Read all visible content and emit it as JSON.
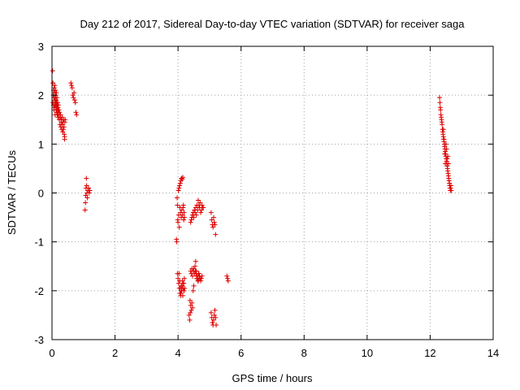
{
  "chart_data": {
    "type": "scatter",
    "title": "Day 212 of 2017, Sidereal Day-to-day VTEC variation (SDTVAR) for receiver saga",
    "xlabel": "GPS time / hours",
    "ylabel": "SDTVAR / TECUs",
    "xlim": [
      0,
      14
    ],
    "ylim": [
      -3,
      3
    ],
    "xticks": [
      0,
      2,
      4,
      6,
      8,
      10,
      12,
      14
    ],
    "yticks": [
      -3,
      -2,
      -1,
      0,
      1,
      2,
      3
    ],
    "xtick_labels": [
      "0",
      "2",
      "4",
      "6",
      "8",
      "10",
      "12",
      "14"
    ],
    "ytick_labels": [
      "-3",
      "-2",
      "-1",
      "0",
      "1",
      "2",
      "3"
    ],
    "grid": true,
    "marker": "+",
    "marker_color": "#dd0000",
    "series": [
      {
        "name": "SDTVAR",
        "x": [
          0.02,
          0.03,
          0.03,
          0.04,
          0.05,
          0.05,
          0.06,
          0.06,
          0.07,
          0.07,
          0.08,
          0.08,
          0.09,
          0.09,
          0.1,
          0.1,
          0.11,
          0.11,
          0.12,
          0.12,
          0.13,
          0.13,
          0.14,
          0.14,
          0.15,
          0.15,
          0.16,
          0.16,
          0.17,
          0.17,
          0.18,
          0.18,
          0.19,
          0.19,
          0.2,
          0.2,
          0.21,
          0.22,
          0.23,
          0.24,
          0.25,
          0.26,
          0.27,
          0.28,
          0.29,
          0.3,
          0.31,
          0.32,
          0.33,
          0.34,
          0.35,
          0.36,
          0.37,
          0.38,
          0.39,
          0.4,
          0.4,
          0.41,
          0.42,
          0.6,
          0.62,
          0.64,
          0.66,
          0.68,
          0.7,
          0.72,
          0.74,
          0.76,
          0.78,
          1.05,
          1.06,
          1.07,
          1.08,
          1.09,
          1.1,
          1.11,
          1.12,
          1.14,
          1.16,
          1.18,
          1.2,
          3.95,
          3.96,
          3.97,
          3.98,
          3.99,
          4.0,
          4.01,
          4.02,
          4.03,
          4.04,
          4.05,
          4.06,
          4.07,
          4.08,
          4.09,
          4.1,
          4.11,
          4.12,
          4.13,
          4.14,
          4.15,
          4.16,
          4.17,
          4.18,
          4.19,
          4.2,
          4.03,
          4.05,
          4.07,
          4.09,
          4.11,
          4.13,
          4.15,
          4.17,
          4.19,
          4.21,
          3.98,
          4.0,
          4.02,
          4.04,
          4.06,
          4.08,
          4.1,
          4.12,
          4.14,
          4.16,
          4.18,
          4.2,
          4.4,
          4.42,
          4.44,
          4.46,
          4.48,
          4.5,
          4.52,
          4.54,
          4.56,
          4.58,
          4.6,
          4.62,
          4.64,
          4.66,
          4.68,
          4.7,
          4.72,
          4.74,
          4.76,
          4.78,
          4.8,
          4.4,
          4.42,
          4.44,
          4.46,
          4.48,
          4.5,
          4.52,
          4.54,
          4.56,
          4.58,
          4.6,
          4.62,
          4.64,
          4.66,
          4.68,
          4.7,
          4.72,
          4.74,
          4.76,
          4.38,
          4.4,
          4.42,
          4.44,
          4.46,
          4.48,
          4.5,
          4.35,
          4.37,
          4.39,
          4.55,
          4.57,
          4.59,
          4.61,
          4.63,
          4.65,
          4.67,
          5.05,
          5.07,
          5.09,
          5.11,
          5.13,
          5.15,
          5.17,
          5.19,
          5.05,
          5.07,
          5.09,
          5.11,
          5.13,
          5.15,
          5.17,
          5.19,
          5.21,
          5.55,
          5.57,
          5.59,
          12.3,
          12.31,
          12.32,
          12.33,
          12.34,
          12.35,
          12.36,
          12.37,
          12.38,
          12.39,
          12.4,
          12.41,
          12.42,
          12.43,
          12.44,
          12.45,
          12.46,
          12.47,
          12.48,
          12.49,
          12.5,
          12.51,
          12.52,
          12.53,
          12.54,
          12.55,
          12.56,
          12.57,
          12.58,
          12.59,
          12.6,
          12.61,
          12.62,
          12.63,
          12.64,
          12.65,
          12.66,
          12.67,
          12.42,
          12.44,
          12.46,
          12.48,
          12.5,
          12.52,
          12.54,
          12.56,
          12.58
        ],
        "y": [
          2.5,
          2.25,
          1.85,
          2.0,
          1.8,
          2.1,
          1.95,
          1.7,
          2.15,
          1.75,
          2.05,
          1.9,
          2.2,
          1.8,
          1.95,
          1.6,
          2.1,
          1.85,
          1.75,
          2.0,
          1.9,
          1.7,
          2.05,
          1.8,
          1.85,
          1.65,
          1.95,
          1.75,
          1.8,
          1.6,
          1.7,
          1.85,
          1.55,
          1.75,
          1.65,
          1.8,
          1.6,
          1.7,
          1.5,
          1.65,
          1.4,
          1.55,
          1.6,
          1.35,
          1.5,
          1.45,
          1.3,
          1.55,
          1.4,
          1.25,
          1.45,
          1.3,
          1.5,
          1.35,
          1.2,
          1.1,
          1.15,
          1.45,
          1.5,
          2.25,
          2.2,
          2.15,
          2.0,
          1.95,
          2.05,
          1.9,
          1.85,
          1.65,
          1.6,
          -0.35,
          -0.2,
          -0.05,
          0.1,
          0.3,
          0.15,
          0.0,
          -0.1,
          0.05,
          0.1,
          0.0,
          0.05,
          -0.95,
          -1.0,
          -0.1,
          -0.25,
          -0.55,
          -0.6,
          0.05,
          -0.45,
          0.1,
          -0.7,
          0.15,
          -0.3,
          0.2,
          -0.4,
          0.25,
          -0.5,
          0.3,
          -0.35,
          0.28,
          -0.45,
          0.32,
          -0.3,
          -0.25,
          -0.55,
          -0.4,
          -0.5,
          -1.65,
          -1.8,
          -1.95,
          -2.05,
          -2.0,
          -1.9,
          -2.1,
          -1.85,
          -2.0,
          -1.95,
          -1.65,
          -1.75,
          -1.85,
          -1.95,
          -2.05,
          -2.1,
          -1.9,
          -2.0,
          -1.8,
          -1.95,
          -1.85,
          -1.75,
          -0.6,
          -0.55,
          -0.5,
          -0.45,
          -0.4,
          -0.5,
          -0.35,
          -0.4,
          -0.3,
          -0.45,
          -0.25,
          -0.35,
          -0.15,
          -0.25,
          -0.3,
          -0.2,
          -0.4,
          -0.35,
          -0.25,
          -0.3,
          -0.3,
          -1.6,
          -1.65,
          -1.55,
          -1.7,
          -1.6,
          -1.55,
          -1.65,
          -1.5,
          -1.4,
          -1.6,
          -1.7,
          -1.75,
          -1.8,
          -1.65,
          -1.7,
          -1.75,
          -1.8,
          -1.75,
          -1.7,
          -2.2,
          -2.3,
          -2.4,
          -2.25,
          -2.35,
          -2.0,
          -1.9,
          -2.5,
          -2.6,
          -2.45,
          -1.6,
          -1.65,
          -1.75,
          -1.7,
          -1.8,
          -1.65,
          -1.75,
          -0.4,
          -0.55,
          -0.65,
          -0.7,
          -0.5,
          -0.6,
          -0.65,
          -0.85,
          -2.45,
          -2.55,
          -2.65,
          -2.7,
          -2.6,
          -2.5,
          -2.4,
          -2.55,
          -2.7,
          -1.7,
          -1.75,
          -1.8,
          1.95,
          1.85,
          1.75,
          1.7,
          1.6,
          1.55,
          1.5,
          1.45,
          1.4,
          1.3,
          1.25,
          1.2,
          1.15,
          1.1,
          1.05,
          1.0,
          0.95,
          0.9,
          0.85,
          0.8,
          0.75,
          0.7,
          0.65,
          0.6,
          0.55,
          0.5,
          0.45,
          0.4,
          0.35,
          0.3,
          0.25,
          0.2,
          0.15,
          0.1,
          0.05,
          0.1,
          0.15,
          0.05,
          1.3,
          1.1,
          0.8,
          0.6,
          1.0,
          0.9,
          0.7,
          0.75,
          0.6
        ]
      }
    ]
  }
}
